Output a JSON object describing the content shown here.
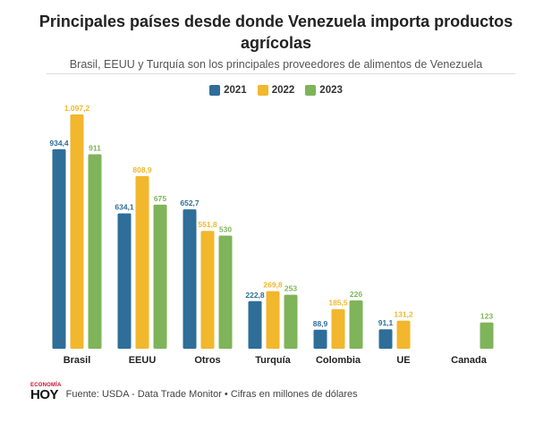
{
  "title_line1": "Principales países desde donde Venezuela importa productos",
  "title_line2": "agrícolas",
  "subtitle": "Brasil, EEUU y Turquía son los principales proveedores de alimentos de Venezuela",
  "logo": {
    "top": "ECONOMÍA",
    "bottom": "HOY"
  },
  "footer_source": "Fuente: USDA - Data Trade Monitor • Cifras en millones de dólares",
  "colors": {
    "2021": "#2e6e99",
    "2022": "#f2b72c",
    "2023": "#7fb45a"
  },
  "chart_data": {
    "type": "bar",
    "categories": [
      "Brasil",
      "EEUU",
      "Otros",
      "Turquía",
      "Colombia",
      "UE",
      "Canada"
    ],
    "series": [
      {
        "name": "2021",
        "values": [
          934.4,
          634.1,
          652.7,
          222.8,
          88.9,
          91.1,
          null
        ],
        "labels": [
          "934,4",
          "634,1",
          "652,7",
          "222,8",
          "88,9",
          "91,1",
          ""
        ]
      },
      {
        "name": "2022",
        "values": [
          1097.2,
          808.9,
          551.8,
          269.8,
          185.5,
          131.2,
          null
        ],
        "labels": [
          "1.097,2",
          "808,9",
          "551,8",
          "269,8",
          "185,5",
          "131,2",
          ""
        ]
      },
      {
        "name": "2023",
        "values": [
          911,
          675,
          530,
          253,
          226,
          null,
          123
        ],
        "labels": [
          "911",
          "675",
          "530",
          "253",
          "226",
          "",
          "123"
        ]
      }
    ],
    "ylim": [
      0,
      1097.2
    ],
    "grid": false,
    "legend_position": "top-center"
  }
}
